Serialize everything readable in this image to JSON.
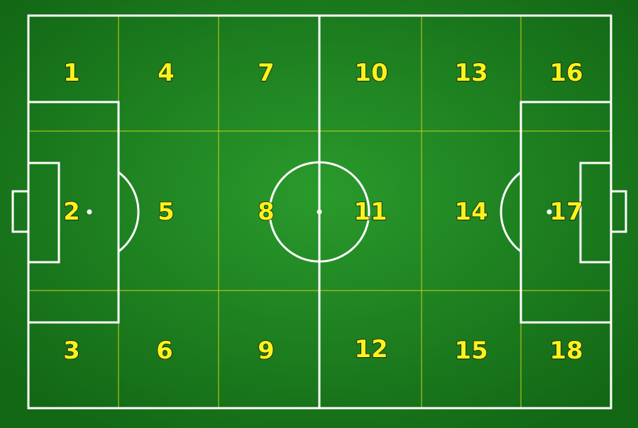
{
  "colors": {
    "grass_center": "#2a9a2c",
    "grass_edge": "#136815",
    "line": "#ffffff",
    "zone_line": "#c9d21a",
    "label_fill": "#fbf21c",
    "label_outline": "#111111"
  },
  "zones": [
    {
      "label": "1"
    },
    {
      "label": "2"
    },
    {
      "label": "3"
    },
    {
      "label": "4"
    },
    {
      "label": "5"
    },
    {
      "label": "6"
    },
    {
      "label": "7"
    },
    {
      "label": "8"
    },
    {
      "label": "9"
    },
    {
      "label": "10"
    },
    {
      "label": "11"
    },
    {
      "label": "12"
    },
    {
      "label": "13"
    },
    {
      "label": "14"
    },
    {
      "label": "15"
    },
    {
      "label": "16"
    },
    {
      "label": "17"
    },
    {
      "label": "18"
    }
  ]
}
